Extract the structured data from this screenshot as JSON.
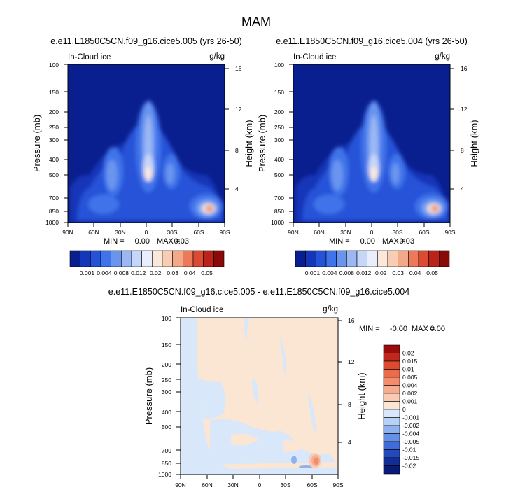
{
  "figure": {
    "title": "MAM"
  },
  "chart_data": [
    {
      "type": "heatmap",
      "title": "e.e11.E1850C5CN.f09_g16.cice5.005 (yrs 26-50)",
      "field_label": "In-Cloud ice",
      "units_label": "g/kg",
      "ylabel": "Pressure (mb)",
      "ylabel_right": "Height (km)",
      "x_ticks": [
        "90N",
        "60N",
        "30N",
        "0",
        "30S",
        "60S",
        "90S"
      ],
      "x_values": [
        -90,
        -60,
        -30,
        0,
        30,
        60,
        90
      ],
      "y_ticks": [
        "100",
        "150",
        "200",
        "250",
        "300",
        "400",
        "500",
        "700",
        "850",
        "1000"
      ],
      "y_values": [
        100,
        150,
        200,
        250,
        300,
        400,
        500,
        700,
        850,
        1000
      ],
      "y_scale": "log",
      "ylim": [
        100,
        1000
      ],
      "height_ticks": [
        "16",
        "12",
        "8",
        "4"
      ],
      "height_values": [
        16,
        12,
        8,
        4
      ],
      "min_label": "MIN =",
      "min_value": "0.00",
      "max_label": "MAX =",
      "max_value": "0.03",
      "legend_position": "bottom",
      "colorbar_labels": [
        "0.001",
        "0.004",
        "0.008",
        "0.012",
        "0.02",
        "0.03",
        "0.04",
        "0.05"
      ],
      "colorbar_colors": [
        "#0a1f8f",
        "#1436b8",
        "#2553d8",
        "#3f73ea",
        "#6a95ef",
        "#9bb8f4",
        "#c6d6f8",
        "#e8eefb",
        "#fbe8da",
        "#f8cdb4",
        "#f3a888",
        "#ec7a5a",
        "#dd4a32",
        "#bb2218",
        "#8a0a0a"
      ],
      "colorbar_layout": "between"
    },
    {
      "type": "heatmap",
      "title": "e.e11.E1850C5CN.f09_g16.cice5.004 (yrs 26-50)",
      "field_label": "In-Cloud ice",
      "units_label": "g/kg",
      "ylabel": "Pressure (mb)",
      "ylabel_right": "Height (km)",
      "x_ticks": [
        "90N",
        "60N",
        "30N",
        "0",
        "30S",
        "60S",
        "90S"
      ],
      "x_values": [
        -90,
        -60,
        -30,
        0,
        30,
        60,
        90
      ],
      "y_ticks": [
        "100",
        "150",
        "200",
        "250",
        "300",
        "400",
        "500",
        "700",
        "850",
        "1000"
      ],
      "y_values": [
        100,
        150,
        200,
        250,
        300,
        400,
        500,
        700,
        850,
        1000
      ],
      "y_scale": "log",
      "ylim": [
        100,
        1000
      ],
      "height_ticks": [
        "16",
        "12",
        "8",
        "4"
      ],
      "height_values": [
        16,
        12,
        8,
        4
      ],
      "min_label": "MIN =",
      "min_value": "0.00",
      "max_label": "MAX =",
      "max_value": "0.03",
      "legend_position": "bottom",
      "colorbar_labels": [
        "0.001",
        "0.004",
        "0.008",
        "0.012",
        "0.02",
        "0.03",
        "0.04",
        "0.05"
      ],
      "colorbar_colors": [
        "#0a1f8f",
        "#1436b8",
        "#2553d8",
        "#3f73ea",
        "#6a95ef",
        "#9bb8f4",
        "#c6d6f8",
        "#e8eefb",
        "#fbe8da",
        "#f8cdb4",
        "#f3a888",
        "#ec7a5a",
        "#dd4a32",
        "#bb2218",
        "#8a0a0a"
      ],
      "colorbar_layout": "between"
    },
    {
      "type": "heatmap",
      "title": "e.e11.E1850C5CN.f09_g16.cice5.005 - e.e11.E1850C5CN.f09_g16.cice5.004",
      "field_label": "In-Cloud ice",
      "units_label": "g/kg",
      "ylabel": "Pressure (mb)",
      "ylabel_right": "Height (km)",
      "x_ticks": [
        "90N",
        "60N",
        "30N",
        "0",
        "30S",
        "60S",
        "90S"
      ],
      "x_values": [
        -90,
        -60,
        -30,
        0,
        30,
        60,
        90
      ],
      "y_ticks": [
        "100",
        "150",
        "200",
        "250",
        "300",
        "400",
        "500",
        "700",
        "850",
        "1000"
      ],
      "y_values": [
        100,
        150,
        200,
        250,
        300,
        400,
        500,
        700,
        850,
        1000
      ],
      "y_scale": "log",
      "ylim": [
        100,
        1000
      ],
      "height_ticks": [
        "16",
        "12",
        "8",
        "4"
      ],
      "height_values": [
        16,
        12,
        8,
        4
      ],
      "min_label": "MIN =",
      "min_value": "-0.00",
      "max_label": "MAX =",
      "max_value": "0.00",
      "legend_position": "right",
      "colorbar_labels": [
        "0.02",
        "0.015",
        "0.01",
        "0.005",
        "0.004",
        "0.002",
        "0.001",
        "0",
        "-0.001",
        "-0.002",
        "-0.004",
        "-0.005",
        "-0.01",
        "-0.015",
        "-0.02"
      ],
      "colorbar_colors": [
        "#9a0c0c",
        "#c0281c",
        "#dc4a30",
        "#ec6b4a",
        "#f28c6c",
        "#f5ac90",
        "#f8cbb2",
        "#fbe6d4",
        "#d9e7fb",
        "#b7d0f6",
        "#8fb2ef",
        "#6690e6",
        "#3f6cd8",
        "#2449b8",
        "#122d96",
        "#0a1a78"
      ],
      "colorbar_layout": "between"
    }
  ]
}
